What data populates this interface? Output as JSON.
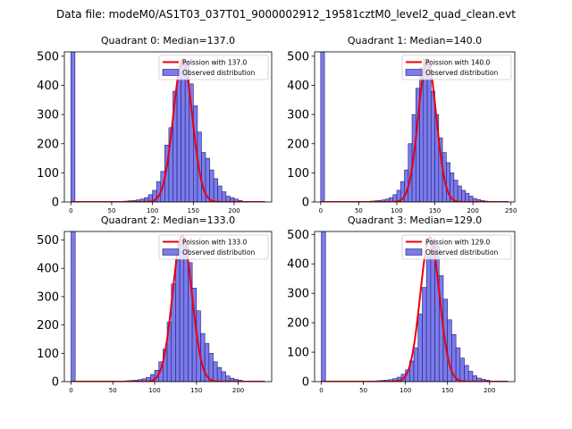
{
  "figure": {
    "title": "Data file: modeM0/AS1T03_037T01_9000002912_19581cztM0_level2_quad_clean.evt"
  },
  "colors": {
    "bar_fill": "#7b7bea",
    "bar_edge": "#1f1f7a",
    "poisson_line": "#e8000b",
    "axis": "#000000"
  },
  "chart_data": [
    {
      "type": "bar",
      "title": "Quadrant 0: Median=137.0",
      "median": 137.0,
      "xlim": [
        -8,
        246
      ],
      "ylim": [
        0,
        515
      ],
      "xticks": [
        0,
        50,
        100,
        150,
        200
      ],
      "yticks": [
        0,
        100,
        200,
        300,
        400,
        500
      ],
      "legend": [
        "Poission with 137.0",
        "Observed distribution"
      ],
      "legend_position": "top-right",
      "bins": [
        {
          "x": 0,
          "y": 515
        },
        {
          "x": 65,
          "y": 3
        },
        {
          "x": 70,
          "y": 4
        },
        {
          "x": 75,
          "y": 5
        },
        {
          "x": 80,
          "y": 7
        },
        {
          "x": 85,
          "y": 10
        },
        {
          "x": 90,
          "y": 15
        },
        {
          "x": 95,
          "y": 25
        },
        {
          "x": 100,
          "y": 40
        },
        {
          "x": 105,
          "y": 70
        },
        {
          "x": 110,
          "y": 105
        },
        {
          "x": 115,
          "y": 195
        },
        {
          "x": 120,
          "y": 255
        },
        {
          "x": 125,
          "y": 380
        },
        {
          "x": 130,
          "y": 450
        },
        {
          "x": 135,
          "y": 490
        },
        {
          "x": 140,
          "y": 480
        },
        {
          "x": 145,
          "y": 405
        },
        {
          "x": 150,
          "y": 330
        },
        {
          "x": 155,
          "y": 240
        },
        {
          "x": 160,
          "y": 170
        },
        {
          "x": 165,
          "y": 150
        },
        {
          "x": 170,
          "y": 110
        },
        {
          "x": 175,
          "y": 80
        },
        {
          "x": 180,
          "y": 55
        },
        {
          "x": 185,
          "y": 35
        },
        {
          "x": 190,
          "y": 20
        },
        {
          "x": 195,
          "y": 15
        },
        {
          "x": 200,
          "y": 10
        },
        {
          "x": 205,
          "y": 5
        }
      ],
      "poisson_peak": 487
    },
    {
      "type": "bar",
      "title": "Quadrant 1: Median=140.0",
      "median": 140.0,
      "xlim": [
        -8,
        255
      ],
      "ylim": [
        0,
        515
      ],
      "xticks": [
        0,
        50,
        100,
        150,
        200,
        250
      ],
      "yticks": [
        0,
        100,
        200,
        300,
        400,
        500
      ],
      "legend": [
        "Poission with 140.0",
        "Observed distribution"
      ],
      "legend_position": "top-right",
      "bins": [
        {
          "x": 0,
          "y": 515
        },
        {
          "x": 65,
          "y": 3
        },
        {
          "x": 70,
          "y": 4
        },
        {
          "x": 75,
          "y": 5
        },
        {
          "x": 80,
          "y": 7
        },
        {
          "x": 85,
          "y": 10
        },
        {
          "x": 90,
          "y": 15
        },
        {
          "x": 95,
          "y": 25
        },
        {
          "x": 100,
          "y": 40
        },
        {
          "x": 105,
          "y": 70
        },
        {
          "x": 110,
          "y": 110
        },
        {
          "x": 115,
          "y": 200
        },
        {
          "x": 120,
          "y": 300
        },
        {
          "x": 125,
          "y": 390
        },
        {
          "x": 130,
          "y": 460
        },
        {
          "x": 135,
          "y": 490
        },
        {
          "x": 140,
          "y": 470
        },
        {
          "x": 145,
          "y": 380
        },
        {
          "x": 150,
          "y": 300
        },
        {
          "x": 155,
          "y": 220
        },
        {
          "x": 160,
          "y": 170
        },
        {
          "x": 165,
          "y": 135
        },
        {
          "x": 170,
          "y": 100
        },
        {
          "x": 175,
          "y": 75
        },
        {
          "x": 180,
          "y": 55
        },
        {
          "x": 185,
          "y": 40
        },
        {
          "x": 190,
          "y": 30
        },
        {
          "x": 195,
          "y": 20
        },
        {
          "x": 200,
          "y": 12
        },
        {
          "x": 205,
          "y": 8
        },
        {
          "x": 210,
          "y": 5
        },
        {
          "x": 215,
          "y": 3
        }
      ],
      "poisson_peak": 487
    },
    {
      "type": "bar",
      "title": "Quadrant 2: Median=133.0",
      "median": 133.0,
      "xlim": [
        -8,
        240
      ],
      "ylim": [
        0,
        530
      ],
      "xticks": [
        0,
        50,
        100,
        150,
        200
      ],
      "yticks": [
        0,
        100,
        200,
        300,
        400,
        500
      ],
      "legend": [
        "Poission with 133.0",
        "Observed distribution"
      ],
      "legend_position": "top-right",
      "bins": [
        {
          "x": 0,
          "y": 530
        },
        {
          "x": 65,
          "y": 3
        },
        {
          "x": 70,
          "y": 4
        },
        {
          "x": 75,
          "y": 5
        },
        {
          "x": 80,
          "y": 7
        },
        {
          "x": 85,
          "y": 10
        },
        {
          "x": 90,
          "y": 15
        },
        {
          "x": 95,
          "y": 25
        },
        {
          "x": 100,
          "y": 40
        },
        {
          "x": 105,
          "y": 70
        },
        {
          "x": 110,
          "y": 115
        },
        {
          "x": 115,
          "y": 210
        },
        {
          "x": 120,
          "y": 345
        },
        {
          "x": 125,
          "y": 430
        },
        {
          "x": 130,
          "y": 500
        },
        {
          "x": 135,
          "y": 480
        },
        {
          "x": 140,
          "y": 420
        },
        {
          "x": 145,
          "y": 330
        },
        {
          "x": 150,
          "y": 250
        },
        {
          "x": 155,
          "y": 170
        },
        {
          "x": 160,
          "y": 135
        },
        {
          "x": 165,
          "y": 100
        },
        {
          "x": 170,
          "y": 70
        },
        {
          "x": 175,
          "y": 50
        },
        {
          "x": 180,
          "y": 35
        },
        {
          "x": 185,
          "y": 20
        },
        {
          "x": 190,
          "y": 12
        },
        {
          "x": 195,
          "y": 8
        },
        {
          "x": 200,
          "y": 5
        }
      ],
      "poisson_peak": 515
    },
    {
      "type": "bar",
      "title": "Quadrant 3: Median=129.0",
      "median": 129.0,
      "xlim": [
        -8,
        230
      ],
      "ylim": [
        0,
        510
      ],
      "xticks": [
        0,
        50,
        100,
        150,
        200
      ],
      "yticks": [
        0,
        100,
        200,
        300,
        400,
        500
      ],
      "legend": [
        "Poission with 129.0",
        "Observed distribution"
      ],
      "legend_position": "top-right",
      "bins": [
        {
          "x": 0,
          "y": 510
        },
        {
          "x": 65,
          "y": 3
        },
        {
          "x": 70,
          "y": 4
        },
        {
          "x": 75,
          "y": 5
        },
        {
          "x": 80,
          "y": 7
        },
        {
          "x": 85,
          "y": 10
        },
        {
          "x": 90,
          "y": 15
        },
        {
          "x": 95,
          "y": 25
        },
        {
          "x": 100,
          "y": 40
        },
        {
          "x": 105,
          "y": 70
        },
        {
          "x": 110,
          "y": 115
        },
        {
          "x": 115,
          "y": 230
        },
        {
          "x": 120,
          "y": 320
        },
        {
          "x": 125,
          "y": 430
        },
        {
          "x": 130,
          "y": 480
        },
        {
          "x": 135,
          "y": 460
        },
        {
          "x": 140,
          "y": 360
        },
        {
          "x": 145,
          "y": 280
        },
        {
          "x": 150,
          "y": 210
        },
        {
          "x": 155,
          "y": 160
        },
        {
          "x": 160,
          "y": 115
        },
        {
          "x": 165,
          "y": 80
        },
        {
          "x": 170,
          "y": 55
        },
        {
          "x": 175,
          "y": 35
        },
        {
          "x": 180,
          "y": 20
        },
        {
          "x": 185,
          "y": 12
        },
        {
          "x": 190,
          "y": 8
        },
        {
          "x": 195,
          "y": 5
        }
      ],
      "poisson_peak": 490
    }
  ]
}
